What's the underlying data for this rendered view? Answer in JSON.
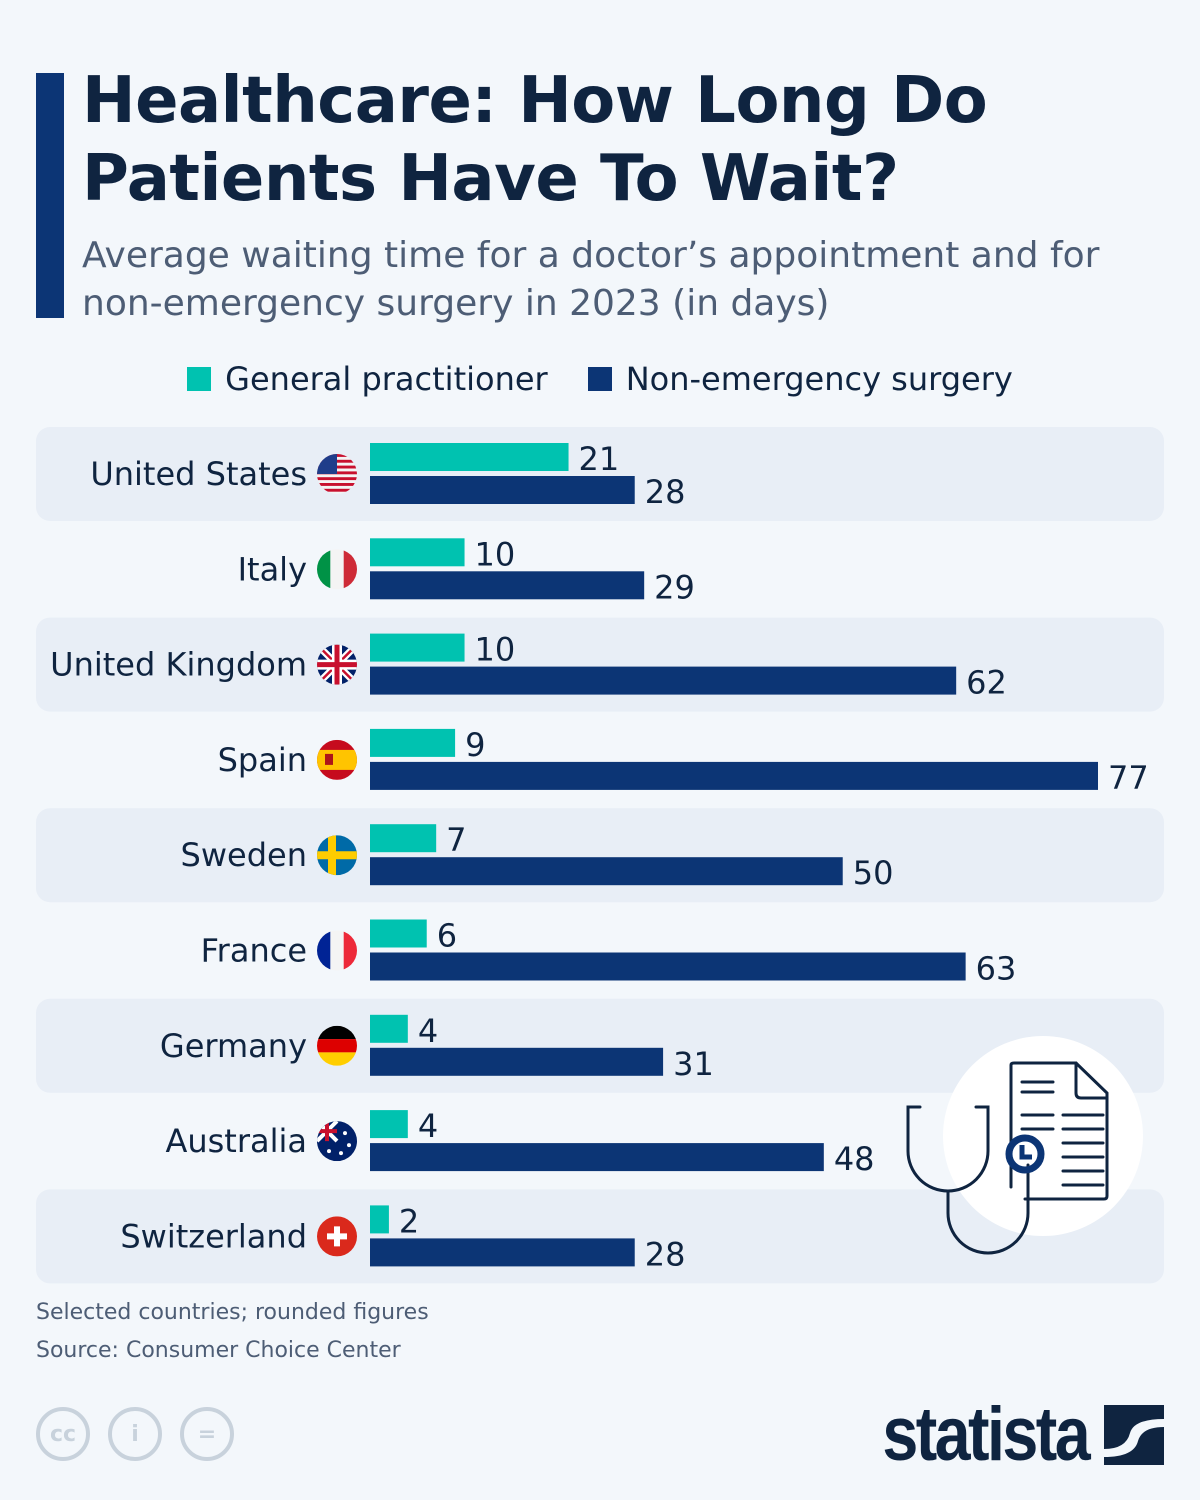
{
  "header": {
    "title": "Healthcare: How Long Do Patients Have To Wait?",
    "subtitle": "Average waiting time for a doctor’s appointment and for non-emergency surgery in 2023 (in days)"
  },
  "chart_data": {
    "type": "bar",
    "orientation": "horizontal",
    "title": "Healthcare: How Long Do Patients Have To Wait?",
    "subtitle": "Average waiting time for a doctor’s appointment and for non-emergency surgery in 2023 (in days)",
    "categories": [
      "United States",
      "Italy",
      "United Kingdom",
      "Spain",
      "Sweden",
      "France",
      "Germany",
      "Australia",
      "Switzerland"
    ],
    "flags": [
      "us-flag-icon",
      "italy-flag-icon",
      "uk-flag-icon",
      "spain-flag-icon",
      "sweden-flag-icon",
      "france-flag-icon",
      "germany-flag-icon",
      "australia-flag-icon",
      "switzerland-flag-icon"
    ],
    "series": [
      {
        "name": "General practitioner",
        "color": "#00c2b0",
        "values": [
          21,
          10,
          10,
          9,
          7,
          6,
          4,
          4,
          2
        ]
      },
      {
        "name": "Non-emergency surgery",
        "color": "#0c3575",
        "values": [
          28,
          29,
          62,
          77,
          50,
          63,
          31,
          48,
          28
        ]
      }
    ],
    "xlim": [
      0,
      77
    ],
    "grid": false,
    "data_labels": true,
    "legend": "top"
  },
  "footer": {
    "note": "Selected countries; rounded figures",
    "source": "Source: Consumer Choice Center",
    "brand": "statista",
    "license_icons": [
      "cc",
      "i",
      "="
    ]
  }
}
